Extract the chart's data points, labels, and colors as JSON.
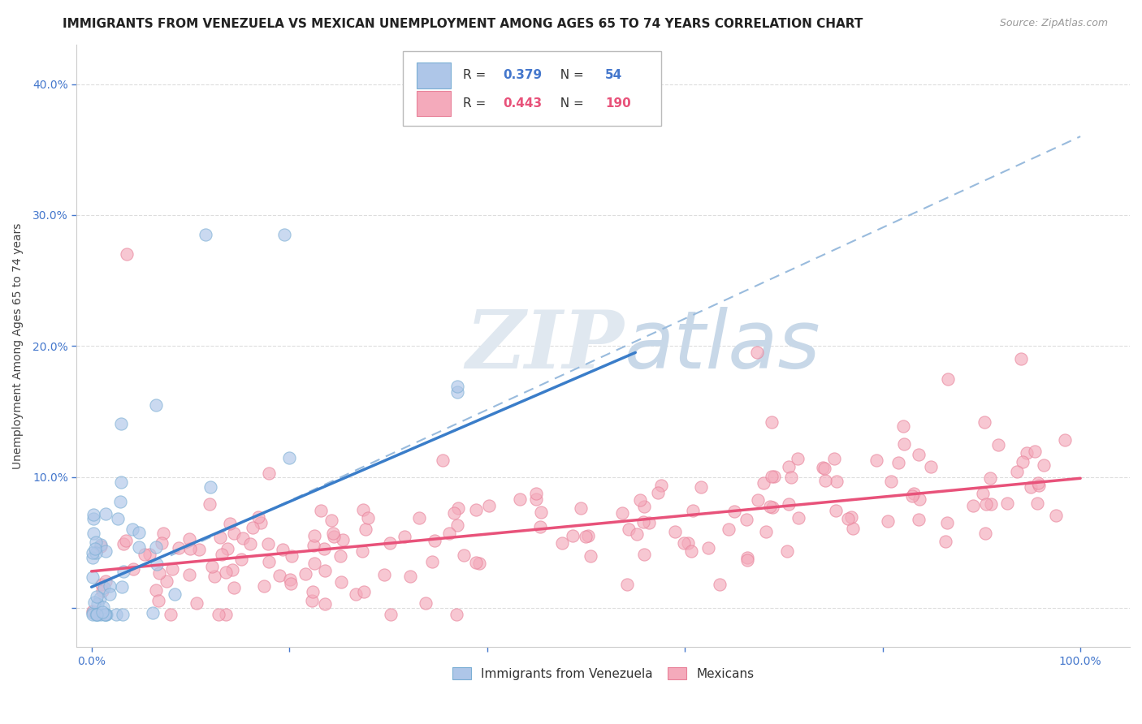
{
  "title": "IMMIGRANTS FROM VENEZUELA VS MEXICAN UNEMPLOYMENT AMONG AGES 65 TO 74 YEARS CORRELATION CHART",
  "source": "Source: ZipAtlas.com",
  "ylabel": "Unemployment Among Ages 65 to 74 years",
  "xlim": [
    -0.015,
    1.05
  ],
  "ylim": [
    -0.03,
    0.43
  ],
  "xticks": [
    0.0,
    0.2,
    0.4,
    0.6,
    0.8,
    1.0
  ],
  "xticklabels": [
    "0.0%",
    "",
    "",
    "",
    "",
    "100.0%"
  ],
  "yticks": [
    0.0,
    0.1,
    0.2,
    0.3,
    0.4
  ],
  "yticklabels": [
    "",
    "10.0%",
    "20.0%",
    "30.0%",
    "40.0%"
  ],
  "blue_R": "0.379",
  "blue_N": "54",
  "pink_R": "0.443",
  "pink_N": "190",
  "blue_fill": "#AEC6E8",
  "blue_edge": "#7BAFD4",
  "pink_fill": "#F4AABB",
  "pink_edge": "#E8829A",
  "blue_line": "#3A7DC9",
  "pink_line": "#E8527A",
  "dash_line": "#99BBDD",
  "tick_color": "#4477CC",
  "grid_color": "#DDDDDD",
  "watermark_color": "#E0E8F0",
  "title_fontsize": 11,
  "source_fontsize": 9,
  "ylabel_fontsize": 10,
  "tick_fontsize": 10,
  "legend_fontsize": 11,
  "scatter_size": 120,
  "scatter_alpha": 0.65,
  "blue_line_start_x": 0.0,
  "blue_line_start_y": 0.016,
  "blue_line_end_x": 0.55,
  "blue_line_end_y": 0.195,
  "pink_line_start_x": 0.0,
  "pink_line_start_y": 0.028,
  "pink_line_end_x": 1.0,
  "pink_line_end_y": 0.099,
  "dash_line_start_x": 0.08,
  "dash_line_start_y": 0.04,
  "dash_line_end_x": 1.0,
  "dash_line_end_y": 0.36
}
